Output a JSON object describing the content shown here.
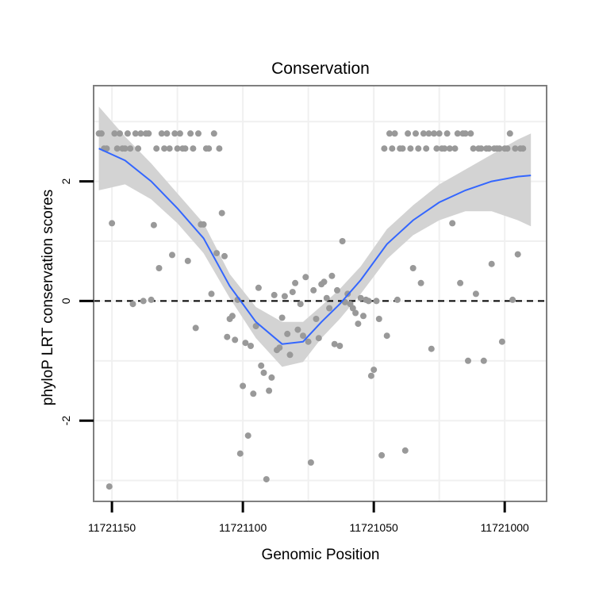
{
  "chart_data": {
    "type": "scatter",
    "title": "Conservation",
    "xlabel": "Genomic Position",
    "ylabel": "phyloP LRT conservation scores",
    "x_reversed": true,
    "xlim": [
      11721157,
      11720984
    ],
    "ylim": [
      -3.35,
      3.6
    ],
    "x_ticks": [
      11721150,
      11721100,
      11721050,
      11721000
    ],
    "x_tick_labels": [
      "11721150",
      "11721100",
      "11721050",
      "11721000"
    ],
    "y_ticks": [
      -2,
      0,
      2
    ],
    "y_tick_labels": [
      "-2",
      "0",
      "2"
    ],
    "grid": true,
    "reference_line": {
      "y": 0,
      "style": "dashed",
      "color": "#000000"
    },
    "colors": {
      "points": "#999999",
      "smooth": "#3366FF",
      "ribbon": "#D3D3D3",
      "panel_border": "#7F7F7F",
      "grid": "#F0F0F0"
    },
    "points": [
      [
        11721155,
        2.8
      ],
      [
        11721154,
        2.8
      ],
      [
        11721153,
        2.55
      ],
      [
        11721152,
        2.55
      ],
      [
        11721151,
        -3.1
      ],
      [
        11721150,
        1.3
      ],
      [
        11721149,
        2.8
      ],
      [
        11721148,
        2.55
      ],
      [
        11721147,
        2.8
      ],
      [
        11721146,
        2.55
      ],
      [
        11721145,
        2.55
      ],
      [
        11721144,
        2.8
      ],
      [
        11721143,
        2.55
      ],
      [
        11721142,
        -0.05
      ],
      [
        11721141,
        2.8
      ],
      [
        11721140,
        2.55
      ],
      [
        11721139,
        2.8
      ],
      [
        11721138,
        0.0
      ],
      [
        11721137,
        2.8
      ],
      [
        11721136,
        2.8
      ],
      [
        11721135,
        0.02
      ],
      [
        11721134,
        1.27
      ],
      [
        11721133,
        2.55
      ],
      [
        11721132,
        0.55
      ],
      [
        11721131,
        2.8
      ],
      [
        11721130,
        2.55
      ],
      [
        11721129,
        2.8
      ],
      [
        11721128,
        2.55
      ],
      [
        11721127,
        0.77
      ],
      [
        11721126,
        2.8
      ],
      [
        11721125,
        2.55
      ],
      [
        11721124,
        2.8
      ],
      [
        11721123,
        2.55
      ],
      [
        11721122,
        2.55
      ],
      [
        11721121,
        0.67
      ],
      [
        11721120,
        2.8
      ],
      [
        11721119,
        2.55
      ],
      [
        11721118,
        -0.45
      ],
      [
        11721117,
        2.8
      ],
      [
        11721116,
        1.28
      ],
      [
        11721115,
        1.28
      ],
      [
        11721114,
        2.55
      ],
      [
        11721113,
        2.55
      ],
      [
        11721112,
        0.12
      ],
      [
        11721111,
        2.8
      ],
      [
        11721110,
        0.8
      ],
      [
        11721109,
        2.55
      ],
      [
        11721108,
        1.47
      ],
      [
        11721107,
        0.75
      ],
      [
        11721106,
        -0.6
      ],
      [
        11721105,
        -0.3
      ],
      [
        11721104,
        -0.25
      ],
      [
        11721103,
        -0.65
      ],
      [
        11721102,
        0.02
      ],
      [
        11721101,
        -2.55
      ],
      [
        11721100,
        -1.42
      ],
      [
        11721099,
        -0.7
      ],
      [
        11721098,
        -2.25
      ],
      [
        11721097,
        -0.75
      ],
      [
        11721096,
        -1.55
      ],
      [
        11721095,
        -0.42
      ],
      [
        11721094,
        0.22
      ],
      [
        11721093,
        -1.08
      ],
      [
        11721092,
        -1.2
      ],
      [
        11721091,
        -2.98
      ],
      [
        11721090,
        -1.5
      ],
      [
        11721089,
        -1.28
      ],
      [
        11721088,
        0.1
      ],
      [
        11721087,
        -0.82
      ],
      [
        11721086,
        -0.78
      ],
      [
        11721085,
        -0.28
      ],
      [
        11721084,
        0.08
      ],
      [
        11721083,
        -0.55
      ],
      [
        11721082,
        -0.9
      ],
      [
        11721081,
        0.15
      ],
      [
        11721080,
        0.3
      ],
      [
        11721079,
        -0.48
      ],
      [
        11721078,
        -0.05
      ],
      [
        11721077,
        -0.58
      ],
      [
        11721076,
        0.4
      ],
      [
        11721075,
        -0.68
      ],
      [
        11721074,
        -2.7
      ],
      [
        11721073,
        0.18
      ],
      [
        11721072,
        -0.3
      ],
      [
        11721071,
        -0.62
      ],
      [
        11721070,
        0.28
      ],
      [
        11721069,
        0.32
      ],
      [
        11721068,
        0.05
      ],
      [
        11721067,
        -0.12
      ],
      [
        11721066,
        0.42
      ],
      [
        11721065,
        -0.72
      ],
      [
        11721064,
        0.18
      ],
      [
        11721063,
        -0.75
      ],
      [
        11721062,
        1.0
      ],
      [
        11721061,
        -0.02
      ],
      [
        11721060,
        0.12
      ],
      [
        11721059,
        -0.05
      ],
      [
        11721058,
        -0.12
      ],
      [
        11721057,
        -0.2
      ],
      [
        11721056,
        -0.38
      ],
      [
        11721055,
        0.05
      ],
      [
        11721054,
        -0.25
      ],
      [
        11721053,
        0.02
      ],
      [
        11721052,
        0.0
      ],
      [
        11721051,
        -1.25
      ],
      [
        11721050,
        -1.15
      ],
      [
        11721049,
        0.0
      ],
      [
        11721048,
        -0.3
      ],
      [
        11721047,
        -2.58
      ],
      [
        11721046,
        2.55
      ],
      [
        11721045,
        -0.58
      ],
      [
        11721044,
        2.8
      ],
      [
        11721043,
        2.55
      ],
      [
        11721042,
        2.8
      ],
      [
        11721041,
        0.02
      ],
      [
        11721040,
        2.55
      ],
      [
        11721039,
        2.55
      ],
      [
        11721038,
        -2.5
      ],
      [
        11721037,
        2.8
      ],
      [
        11721036,
        2.55
      ],
      [
        11721035,
        0.55
      ],
      [
        11721034,
        2.8
      ],
      [
        11721033,
        2.55
      ],
      [
        11721032,
        0.3
      ],
      [
        11721031,
        2.8
      ],
      [
        11721030,
        2.55
      ],
      [
        11721029,
        2.8
      ],
      [
        11721028,
        -0.8
      ],
      [
        11721027,
        2.8
      ],
      [
        11721026,
        2.55
      ],
      [
        11721025,
        2.8
      ],
      [
        11721024,
        2.55
      ],
      [
        11721023,
        2.55
      ],
      [
        11721022,
        2.8
      ],
      [
        11721021,
        2.55
      ],
      [
        11721020,
        1.3
      ],
      [
        11721019,
        2.55
      ],
      [
        11721018,
        2.8
      ],
      [
        11721017,
        0.3
      ],
      [
        11721016,
        2.8
      ],
      [
        11721015,
        2.8
      ],
      [
        11721014,
        -1.0
      ],
      [
        11721013,
        2.8
      ],
      [
        11721012,
        2.55
      ],
      [
        11721011,
        0.12
      ],
      [
        11721010,
        2.55
      ],
      [
        11721009,
        2.55
      ],
      [
        11721008,
        -1.0
      ],
      [
        11721007,
        2.55
      ],
      [
        11721006,
        2.55
      ],
      [
        11721005,
        0.62
      ],
      [
        11721004,
        2.55
      ],
      [
        11721003,
        2.55
      ],
      [
        11721002,
        2.55
      ],
      [
        11721001,
        -0.68
      ],
      [
        11721000,
        2.55
      ],
      [
        11720999,
        2.55
      ],
      [
        11720998,
        2.8
      ],
      [
        11720997,
        0.02
      ],
      [
        11720996,
        2.55
      ],
      [
        11720995,
        0.78
      ],
      [
        11720994,
        2.55
      ],
      [
        11720993,
        2.55
      ]
    ],
    "smooth": {
      "x": [
        11721155,
        11721145,
        11721135,
        11721125,
        11721115,
        11721105,
        11721095,
        11721085,
        11721077,
        11721070,
        11721063,
        11721055,
        11721045,
        11721035,
        11721025,
        11721015,
        11721005,
        11720995,
        11720990
      ],
      "y": [
        2.55,
        2.35,
        2.0,
        1.55,
        1.05,
        0.25,
        -0.35,
        -0.72,
        -0.68,
        -0.35,
        -0.05,
        0.35,
        0.95,
        1.35,
        1.65,
        1.85,
        2.0,
        2.08,
        2.1
      ],
      "lower": [
        1.85,
        1.95,
        1.7,
        1.3,
        0.8,
        0.05,
        -0.62,
        -1.1,
        -1.02,
        -0.62,
        -0.3,
        0.12,
        0.7,
        1.1,
        1.35,
        1.5,
        1.5,
        1.35,
        1.25
      ],
      "upper": [
        3.25,
        2.75,
        2.3,
        1.8,
        1.3,
        0.45,
        -0.1,
        -0.35,
        -0.35,
        -0.08,
        0.2,
        0.58,
        1.2,
        1.6,
        1.95,
        2.2,
        2.45,
        2.7,
        2.8
      ]
    }
  }
}
